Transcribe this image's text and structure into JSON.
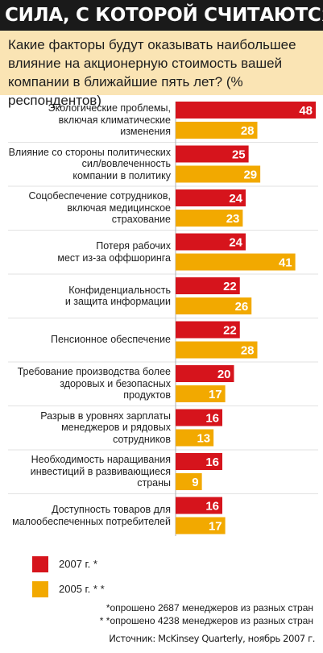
{
  "title": "СИЛА, С КОТОРОЙ СЧИТАЮТСЯ",
  "subtitle": "Какие факторы будут оказывать наибольшее влияние на акционерную стоимость вашей компании в ближайшие пять лет? (% респондентов)",
  "colors": {
    "series_2007": "#d6141c",
    "series_2005": "#f2a900",
    "subtitle_bg": "#fae4b4",
    "title_bg": "#1a1a1a"
  },
  "chart_data": {
    "type": "bar",
    "orientation": "horizontal",
    "categories": [
      "Экологические проблемы, включая климатические изменения",
      "Влияние со стороны политических сил/вовлеченность компании в политику",
      "Соцобеспечение сотрудников, включая медицинское страхование",
      "Потеря рабочих мест из-за оффшоринга",
      "Конфиденциальность и защита информации",
      "Пенсионное обеспечение",
      "Требование производства более здоровых и безопасных продуктов",
      "Разрыв в уровнях зарплаты менеджеров и рядовых сотрудников",
      "Необходимость наращивания инвестиций в развивающиеся страны",
      "Доступность товаров для малообеспеченных потребителей"
    ],
    "category_lines": [
      [
        "Экологические проблемы,",
        "включая климатические",
        "изменения"
      ],
      [
        "Влияние со стороны политических",
        "сил/вовлеченность",
        "компании в политику"
      ],
      [
        "Соцобеспечение сотрудников,",
        "включая медицинское",
        "страхование"
      ],
      [
        "Потеря рабочих",
        "мест из-за оффшоринга"
      ],
      [
        "Конфиденциальность",
        "и защита информации"
      ],
      [
        "Пенсионное обеспечение"
      ],
      [
        "Требование производства более",
        "здоровых и безопасных",
        "продуктов"
      ],
      [
        "Разрыв в уровнях зарплаты",
        "менеджеров и рядовых",
        "сотрудников"
      ],
      [
        "Необходимость наращивания",
        "инвестиций в развивающиеся",
        "страны"
      ],
      [
        "Доступность товаров для",
        "малообеспеченных потребителей"
      ]
    ],
    "series": [
      {
        "name": "2007 г.*",
        "values": [
          48,
          25,
          24,
          24,
          22,
          22,
          20,
          16,
          16,
          16
        ]
      },
      {
        "name": "2005 г.**",
        "values": [
          28,
          29,
          23,
          41,
          26,
          28,
          17,
          13,
          9,
          17
        ]
      }
    ],
    "xlim": [
      0,
      48
    ]
  },
  "legend": {
    "items": [
      {
        "label": "2007 г. *"
      },
      {
        "label": "2005 г. * *"
      }
    ]
  },
  "notes": [
    "*опрошено 2687 менеджеров из разных стран",
    "* *опрошено 4238 менеджеров из разных стран"
  ],
  "source": "Источник: McKinsey Quarterly, ноябрь 2007 г."
}
